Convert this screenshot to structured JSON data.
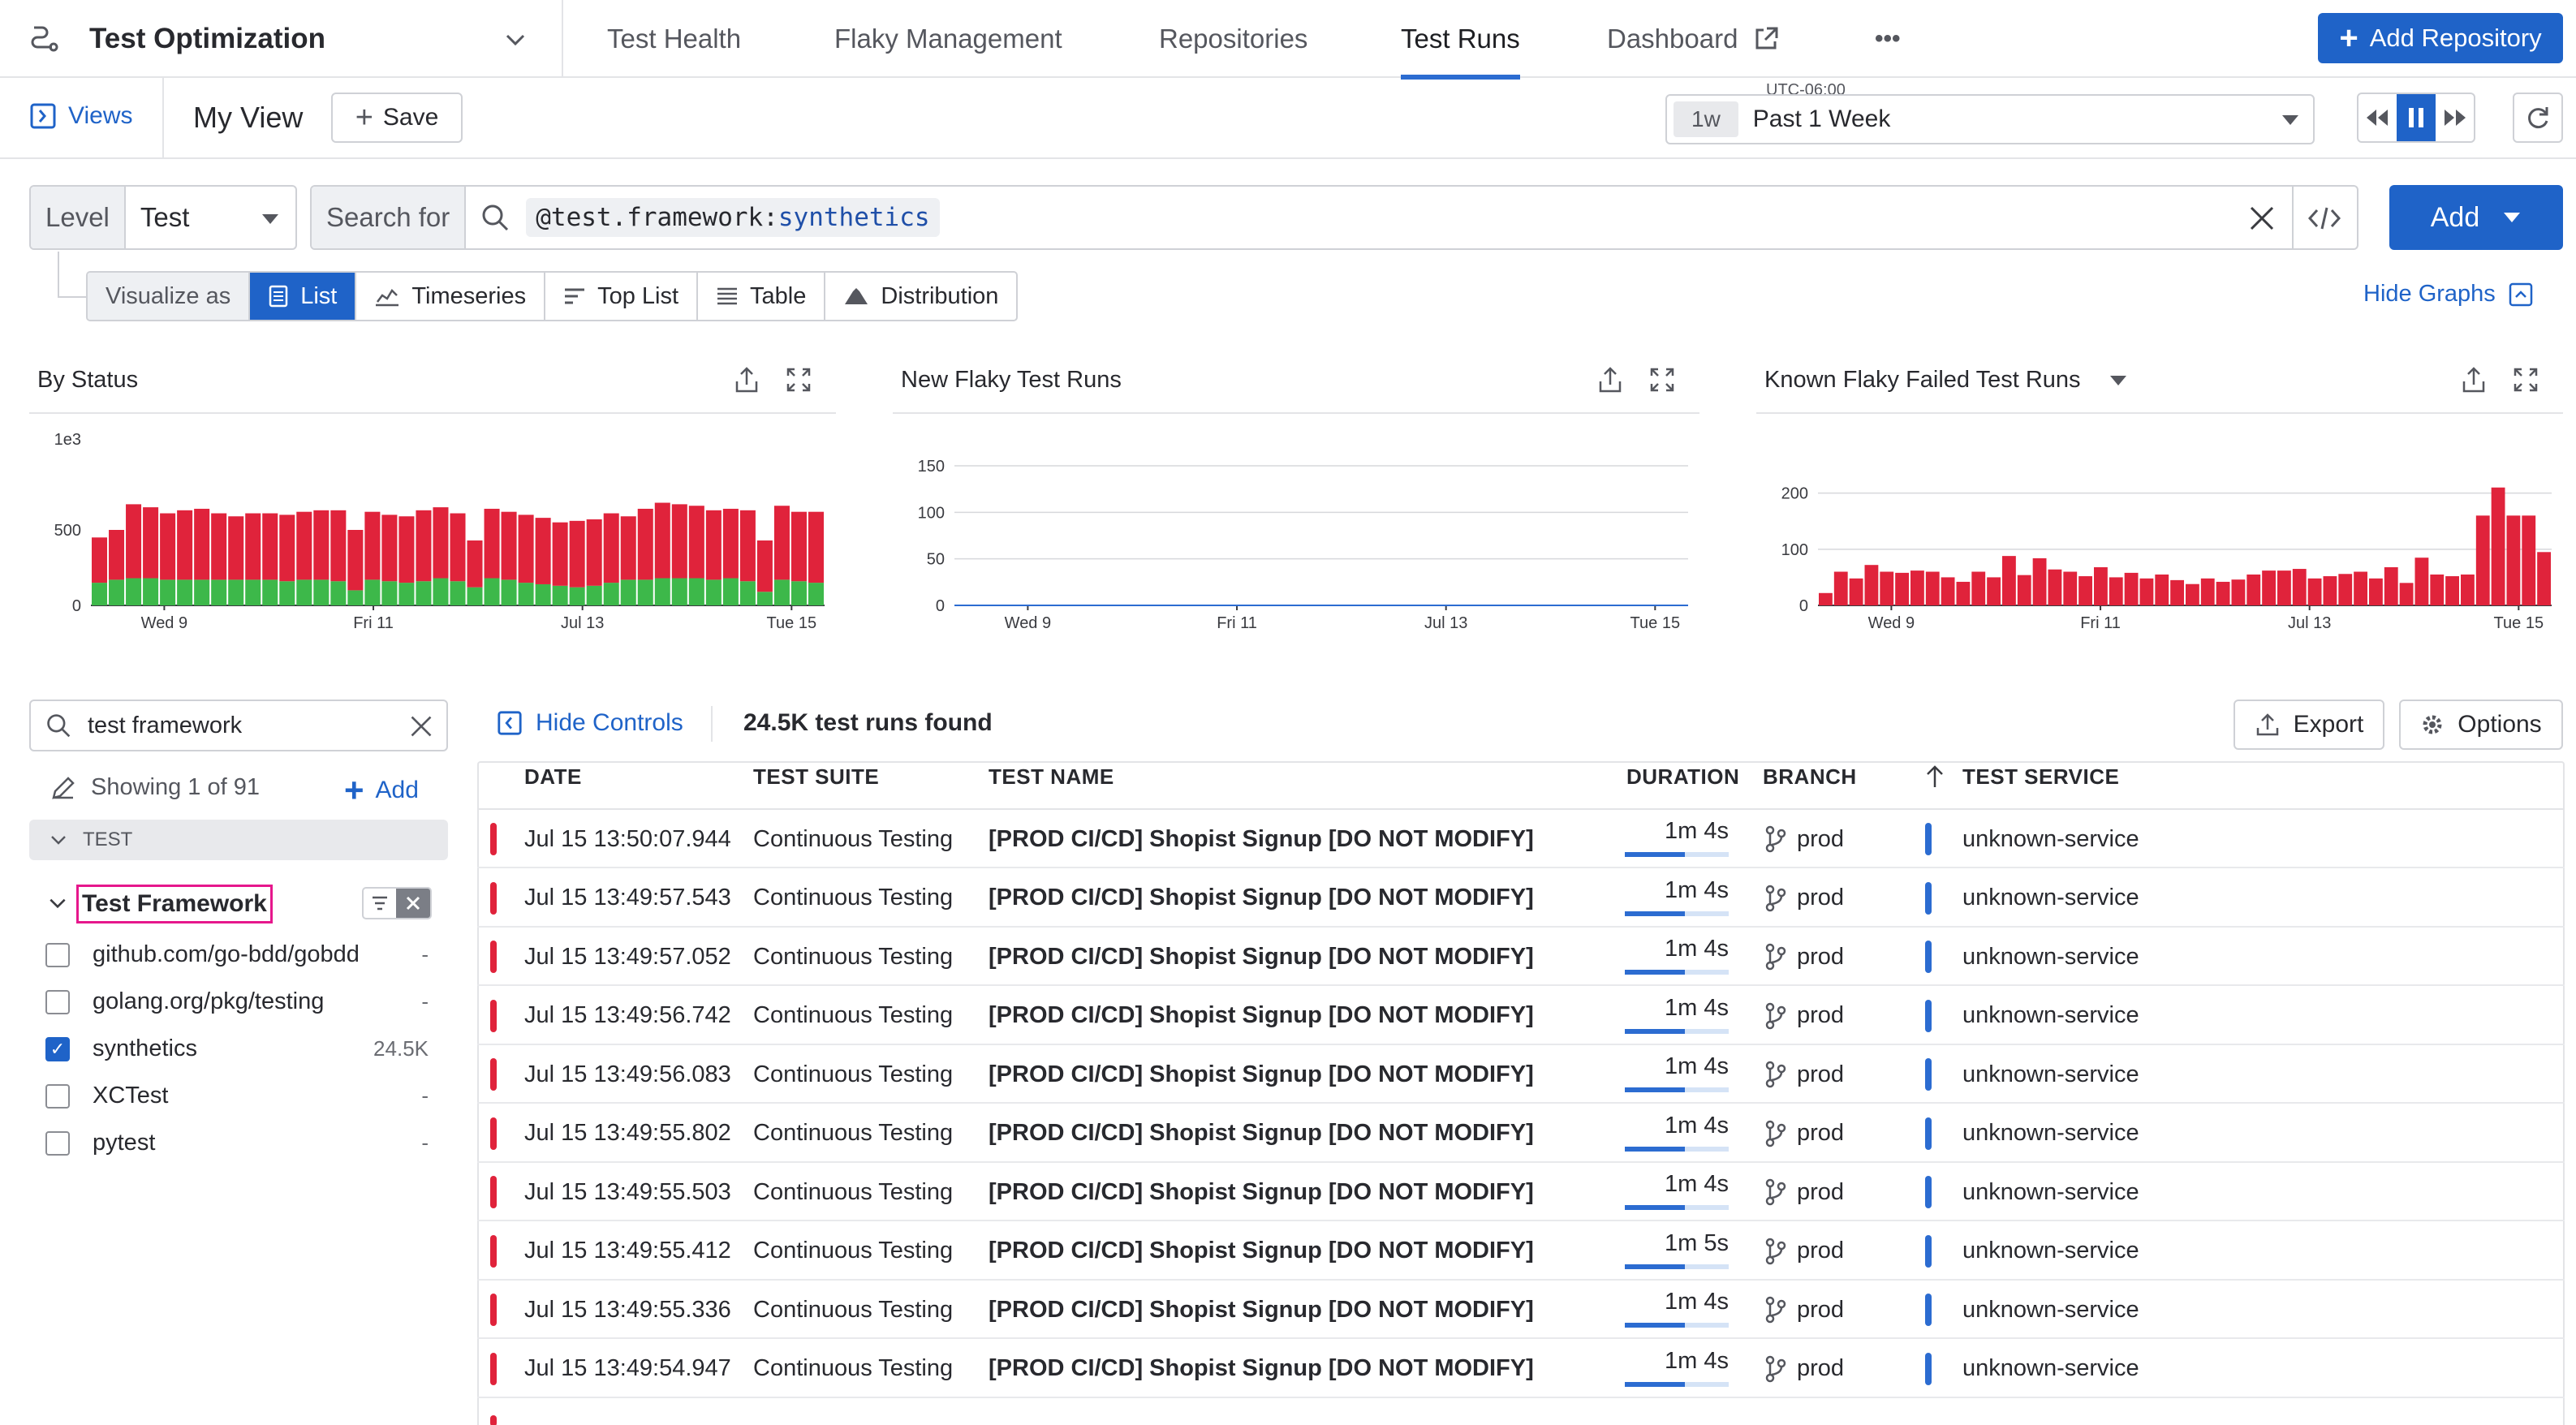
{
  "header": {
    "product_title": "Test Optimization",
    "tabs": [
      {
        "label": "Test Health"
      },
      {
        "label": "Flaky Management"
      },
      {
        "label": "Repositories"
      },
      {
        "label": "Test Runs"
      },
      {
        "label": "Dashboard"
      }
    ],
    "more": "•••",
    "add_repository": "Add Repository"
  },
  "viewbar": {
    "views": "Views",
    "view_name": "My View",
    "save": "Save",
    "tz": "UTC-06:00",
    "range_badge": "1w",
    "range_label": "Past 1 Week"
  },
  "query": {
    "level_label": "Level",
    "level_value": "Test",
    "search_for": "Search for",
    "token_key": "@test.framework",
    "token_sep": ":",
    "token_val": "synthetics",
    "add": "Add"
  },
  "visualize": {
    "label": "Visualize as",
    "options": [
      "List",
      "Timeseries",
      "Top List",
      "Table",
      "Distribution"
    ],
    "hide_graphs": "Hide Graphs"
  },
  "graphs": [
    {
      "title": "By Status",
      "scale": "1e3",
      "yticks": [
        "500",
        "0"
      ],
      "xticks": [
        "Wed 9",
        "Fri 11",
        "Jul 13",
        "Tue 15"
      ]
    },
    {
      "title": "New Flaky Test Runs",
      "yticks": [
        "150",
        "100",
        "50",
        "0"
      ],
      "xticks": [
        "Wed 9",
        "Fri 11",
        "Jul 13",
        "Tue 15"
      ]
    },
    {
      "title": "Known Flaky Failed Test Runs",
      "yticks": [
        "200",
        "100",
        "0"
      ],
      "xticks": [
        "Wed 9",
        "Fri 11",
        "Jul 13",
        "Tue 15"
      ]
    }
  ],
  "chart_data": [
    {
      "type": "bar",
      "title": "By Status",
      "ylim": [
        0,
        1000
      ],
      "series": [
        {
          "name": "fail",
          "color": "#e0233b",
          "values": [
            300,
            330,
            490,
            470,
            440,
            460,
            470,
            440,
            420,
            440,
            440,
            440,
            450,
            460,
            470,
            400,
            450,
            440,
            440,
            470,
            470,
            450,
            310,
            460,
            450,
            450,
            440,
            420,
            440,
            440,
            460,
            420,
            470,
            500,
            490,
            480,
            460,
            460,
            470,
            340,
            490,
            460,
            470
          ]
        },
        {
          "name": "pass",
          "color": "#3db84a",
          "values": [
            150,
            170,
            180,
            180,
            170,
            170,
            170,
            170,
            170,
            170,
            170,
            160,
            170,
            170,
            160,
            100,
            170,
            160,
            150,
            160,
            180,
            160,
            120,
            180,
            170,
            150,
            140,
            130,
            120,
            130,
            150,
            170,
            170,
            180,
            180,
            180,
            170,
            180,
            160,
            90,
            170,
            160,
            150
          ]
        }
      ]
    },
    {
      "type": "line",
      "title": "New Flaky Test Runs",
      "ylim": [
        0,
        150
      ],
      "values": [
        0,
        0,
        0,
        0,
        0,
        0,
        0,
        0,
        0,
        0,
        0,
        0,
        0,
        0,
        0,
        0,
        0,
        0,
        0,
        0,
        0,
        0,
        0,
        0,
        0,
        0,
        0,
        0,
        0,
        0,
        0,
        0,
        0,
        0,
        0,
        0,
        0,
        0,
        0,
        0,
        0,
        0,
        0
      ]
    },
    {
      "type": "bar",
      "title": "Known Flaky Failed Test Runs",
      "ylim": [
        0,
        240
      ],
      "series": [
        {
          "name": "failed",
          "color": "#e0233b",
          "values": [
            22,
            60,
            48,
            72,
            60,
            58,
            62,
            60,
            50,
            42,
            60,
            50,
            88,
            54,
            84,
            64,
            60,
            52,
            68,
            50,
            58,
            48,
            55,
            45,
            38,
            48,
            42,
            46,
            55,
            62,
            62,
            65,
            48,
            52,
            56,
            60,
            48,
            68,
            40,
            85,
            55,
            52,
            55,
            160,
            210,
            160,
            160,
            95
          ]
        }
      ]
    }
  ],
  "facets": {
    "search_value": "test framework",
    "showing": "Showing 1 of 91",
    "add": "Add",
    "group": "TEST",
    "facet_name": "Test Framework",
    "items": [
      {
        "label": "github.com/go-bdd/gobdd",
        "count": "-",
        "checked": false
      },
      {
        "label": "golang.org/pkg/testing",
        "count": "-",
        "checked": false
      },
      {
        "label": "synthetics",
        "count": "24.5K",
        "checked": true
      },
      {
        "label": "XCTest",
        "count": "-",
        "checked": false
      },
      {
        "label": "pytest",
        "count": "-",
        "checked": false
      }
    ]
  },
  "results": {
    "hide_controls": "Hide Controls",
    "found": "24.5K test runs found",
    "export": "Export",
    "options": "Options",
    "columns": [
      "DATE",
      "TEST SUITE",
      "TEST NAME",
      "DURATION",
      "BRANCH",
      "TEST SERVICE"
    ],
    "rows": [
      {
        "date": "Jul 15 13:50:07.944",
        "suite": "Continuous Testing",
        "name": "[PROD CI/CD] Shopist Signup [DO NOT MODIFY]",
        "duration": "1m 4s",
        "branch": "prod",
        "service": "unknown-service"
      },
      {
        "date": "Jul 15 13:49:57.543",
        "suite": "Continuous Testing",
        "name": "[PROD CI/CD] Shopist Signup [DO NOT MODIFY]",
        "duration": "1m 4s",
        "branch": "prod",
        "service": "unknown-service"
      },
      {
        "date": "Jul 15 13:49:57.052",
        "suite": "Continuous Testing",
        "name": "[PROD CI/CD] Shopist Signup [DO NOT MODIFY]",
        "duration": "1m 4s",
        "branch": "prod",
        "service": "unknown-service"
      },
      {
        "date": "Jul 15 13:49:56.742",
        "suite": "Continuous Testing",
        "name": "[PROD CI/CD] Shopist Signup [DO NOT MODIFY]",
        "duration": "1m 4s",
        "branch": "prod",
        "service": "unknown-service"
      },
      {
        "date": "Jul 15 13:49:56.083",
        "suite": "Continuous Testing",
        "name": "[PROD CI/CD] Shopist Signup [DO NOT MODIFY]",
        "duration": "1m 4s",
        "branch": "prod",
        "service": "unknown-service"
      },
      {
        "date": "Jul 15 13:49:55.802",
        "suite": "Continuous Testing",
        "name": "[PROD CI/CD] Shopist Signup [DO NOT MODIFY]",
        "duration": "1m 4s",
        "branch": "prod",
        "service": "unknown-service"
      },
      {
        "date": "Jul 15 13:49:55.503",
        "suite": "Continuous Testing",
        "name": "[PROD CI/CD] Shopist Signup [DO NOT MODIFY]",
        "duration": "1m 4s",
        "branch": "prod",
        "service": "unknown-service"
      },
      {
        "date": "Jul 15 13:49:55.412",
        "suite": "Continuous Testing",
        "name": "[PROD CI/CD] Shopist Signup [DO NOT MODIFY]",
        "duration": "1m 5s",
        "branch": "prod",
        "service": "unknown-service"
      },
      {
        "date": "Jul 15 13:49:55.336",
        "suite": "Continuous Testing",
        "name": "[PROD CI/CD] Shopist Signup [DO NOT MODIFY]",
        "duration": "1m 4s",
        "branch": "prod",
        "service": "unknown-service"
      },
      {
        "date": "Jul 15 13:49:54.947",
        "suite": "Continuous Testing",
        "name": "[PROD CI/CD] Shopist Signup [DO NOT MODIFY]",
        "duration": "1m 4s",
        "branch": "prod",
        "service": "unknown-service"
      }
    ]
  }
}
